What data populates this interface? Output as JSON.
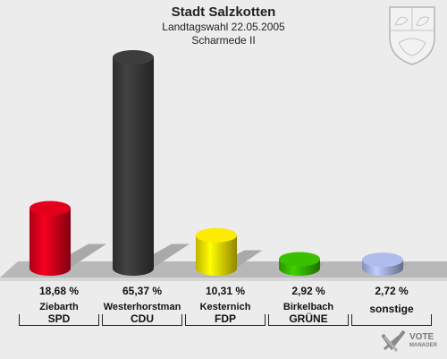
{
  "header": {
    "title": "Stadt Salzkotten",
    "line1": "Landtagswahl 22.05.2005",
    "line2": "Scharmede II"
  },
  "logo": {
    "line1": "VOTE",
    "line2": "MANAGER"
  },
  "chart_data": {
    "type": "bar",
    "title": "Stadt Salzkotten",
    "categories": [
      "SPD",
      "CDU",
      "FDP",
      "GRÜNE",
      "sonstige"
    ],
    "candidates": [
      "Ziebarth",
      "Westerhorstman",
      "Kesternich",
      "Birkelbach",
      ""
    ],
    "labels": [
      "18,68 %",
      "65,37 %",
      "10,31 %",
      "2,92 %",
      "2,72 %"
    ],
    "values": [
      18.68,
      65.37,
      10.31,
      2.92,
      2.72
    ],
    "colors": [
      "#d8001c",
      "#3a3a3a",
      "#f1e000",
      "#36b800",
      "#a6b4e0"
    ],
    "ylim": [
      0,
      70
    ]
  }
}
